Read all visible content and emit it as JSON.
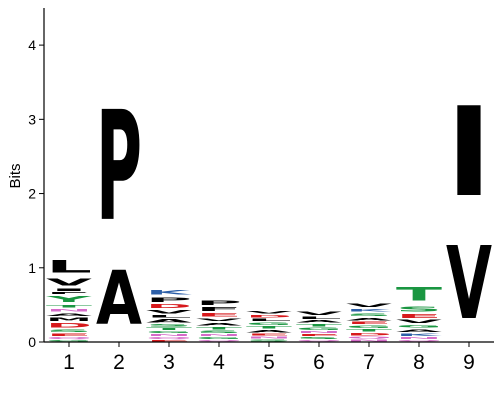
{
  "chart_data": {
    "type": "sequence-logo",
    "ylabel": "Bits",
    "ylim": [
      0,
      4.5
    ],
    "y_ticks": [
      "0",
      "1",
      "2",
      "3",
      "4"
    ],
    "colors": {
      "hydrophobic": "#000000",
      "polar": "#1a9641",
      "acidic": "#d7191c",
      "basic": "#2c5fa8",
      "amide": "#d46bc8"
    },
    "positions": [
      {
        "label": "1",
        "stack": [
          {
            "letter": "G",
            "bits": 0.03
          },
          {
            "letter": "Q",
            "bits": 0.04
          },
          {
            "letter": "E",
            "bits": 0.05
          },
          {
            "letter": "S",
            "bits": 0.06
          },
          {
            "letter": "D",
            "bits": 0.09
          },
          {
            "letter": "M",
            "bits": 0.07
          },
          {
            "letter": "A",
            "bits": 0.06
          },
          {
            "letter": "N",
            "bits": 0.05
          },
          {
            "letter": "T",
            "bits": 0.06
          },
          {
            "letter": "Y",
            "bits": 0.13
          },
          {
            "letter": "F",
            "bits": 0.04
          },
          {
            "letter": "I",
            "bits": 0.05
          },
          {
            "letter": "V",
            "bits": 0.15
          },
          {
            "letter": "L",
            "bits": 0.27
          }
        ]
      },
      {
        "label": "2",
        "stack": [
          {
            "letter": "A",
            "bits": 1.17
          },
          {
            "letter": "P",
            "bits": 2.38
          }
        ]
      },
      {
        "label": "3",
        "stack": [
          {
            "letter": "E",
            "bits": 0.03
          },
          {
            "letter": "Q",
            "bits": 0.04
          },
          {
            "letter": "N",
            "bits": 0.04
          },
          {
            "letter": "G",
            "bits": 0.04
          },
          {
            "letter": "T",
            "bits": 0.05
          },
          {
            "letter": "S",
            "bits": 0.05
          },
          {
            "letter": "A",
            "bits": 0.07
          },
          {
            "letter": "L",
            "bits": 0.05
          },
          {
            "letter": "V",
            "bits": 0.07
          },
          {
            "letter": "D",
            "bits": 0.08
          },
          {
            "letter": "P",
            "bits": 0.1
          },
          {
            "letter": "K",
            "bits": 0.09
          }
        ]
      },
      {
        "label": "4",
        "stack": [
          {
            "letter": "Q",
            "bits": 0.03
          },
          {
            "letter": "G",
            "bits": 0.04
          },
          {
            "letter": "N",
            "bits": 0.04
          },
          {
            "letter": "S",
            "bits": 0.05
          },
          {
            "letter": "T",
            "bits": 0.05
          },
          {
            "letter": "A",
            "bits": 0.06
          },
          {
            "letter": "V",
            "bits": 0.06
          },
          {
            "letter": "E",
            "bits": 0.07
          },
          {
            "letter": "F",
            "bits": 0.08
          },
          {
            "letter": "P",
            "bits": 0.09
          }
        ]
      },
      {
        "label": "5",
        "stack": [
          {
            "letter": "S",
            "bits": 0.04
          },
          {
            "letter": "N",
            "bits": 0.04
          },
          {
            "letter": "E",
            "bits": 0.04
          },
          {
            "letter": "A",
            "bits": 0.05
          },
          {
            "letter": "T",
            "bits": 0.05
          },
          {
            "letter": "G",
            "bits": 0.05
          },
          {
            "letter": "L",
            "bits": 0.05
          },
          {
            "letter": "D",
            "bits": 0.05
          },
          {
            "letter": "V",
            "bits": 0.06
          }
        ]
      },
      {
        "label": "6",
        "stack": [
          {
            "letter": "Q",
            "bits": 0.03
          },
          {
            "letter": "S",
            "bits": 0.04
          },
          {
            "letter": "E",
            "bits": 0.04
          },
          {
            "letter": "N",
            "bits": 0.04
          },
          {
            "letter": "G",
            "bits": 0.05
          },
          {
            "letter": "T",
            "bits": 0.05
          },
          {
            "letter": "A",
            "bits": 0.05
          },
          {
            "letter": "L",
            "bits": 0.05
          },
          {
            "letter": "V",
            "bits": 0.07
          }
        ]
      },
      {
        "label": "7",
        "stack": [
          {
            "letter": "N",
            "bits": 0.04
          },
          {
            "letter": "Q",
            "bits": 0.04
          },
          {
            "letter": "D",
            "bits": 0.05
          },
          {
            "letter": "T",
            "bits": 0.05
          },
          {
            "letter": "G",
            "bits": 0.05
          },
          {
            "letter": "E",
            "bits": 0.05
          },
          {
            "letter": "A",
            "bits": 0.06
          },
          {
            "letter": "S",
            "bits": 0.06
          },
          {
            "letter": "K",
            "bits": 0.06
          },
          {
            "letter": "V",
            "bits": 0.07
          }
        ]
      },
      {
        "label": "8",
        "stack": [
          {
            "letter": "Q",
            "bits": 0.03
          },
          {
            "letter": "N",
            "bits": 0.04
          },
          {
            "letter": "K",
            "bits": 0.05
          },
          {
            "letter": "A",
            "bits": 0.06
          },
          {
            "letter": "G",
            "bits": 0.06
          },
          {
            "letter": "V",
            "bits": 0.07
          },
          {
            "letter": "E",
            "bits": 0.08
          },
          {
            "letter": "S",
            "bits": 0.11
          },
          {
            "letter": "T",
            "bits": 0.3
          }
        ]
      },
      {
        "label": "9",
        "stack": [
          {
            "letter": "V",
            "bits": 1.58
          },
          {
            "letter": "I",
            "bits": 1.94
          }
        ]
      }
    ]
  }
}
